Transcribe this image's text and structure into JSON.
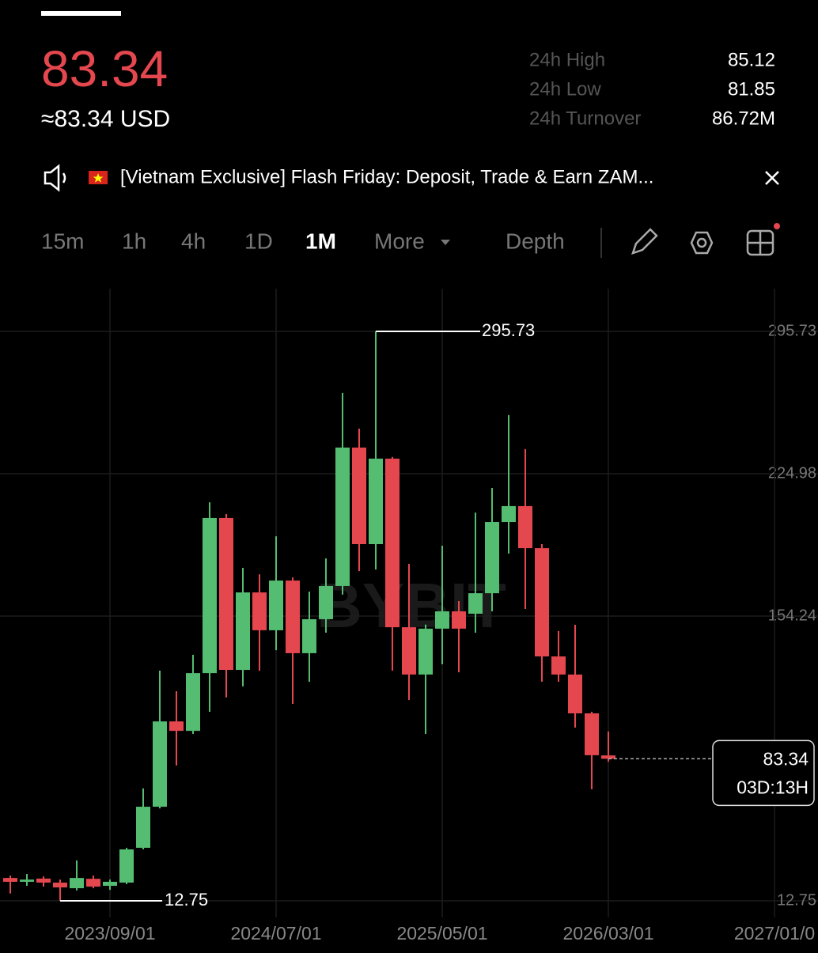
{
  "header": {
    "price": "83.34",
    "usd_price": "≈83.34 USD",
    "stats": [
      {
        "label": "24h High",
        "value": "85.12"
      },
      {
        "label": "24h Low",
        "value": "81.85"
      },
      {
        "label": "24h Turnover",
        "value": "86.72M"
      }
    ]
  },
  "banner": {
    "text": "[Vietnam Exclusive] Flash Friday: Deposit, Trade & Earn ZAM..."
  },
  "tabs": [
    "15m",
    "1h",
    "4h",
    "1D",
    "1M",
    "More",
    "Depth"
  ],
  "chart_data": {
    "type": "candlestick",
    "watermark": "BYBIT",
    "categories": [
      null,
      null,
      null,
      null,
      null,
      null,
      "2023/09/01",
      null,
      null,
      null,
      null,
      null,
      null,
      null,
      null,
      null,
      "2024/07/01",
      null,
      null,
      null,
      null,
      null,
      null,
      null,
      null,
      null,
      "2025/05/01",
      null,
      null,
      null,
      null,
      null,
      null,
      null,
      null,
      null,
      "2026/03/01",
      null,
      null,
      null,
      null,
      null,
      null,
      null,
      null,
      null,
      "2027/01/0"
    ],
    "open": [
      24.1,
      22.2,
      23.8,
      21.8,
      19.0,
      23.7,
      20.2,
      21.8,
      39.1,
      59.5,
      101.9,
      97.2,
      125.9,
      203.0,
      127.5,
      166.0,
      147.2,
      171.9,
      135.8,
      152.7,
      169.2,
      238.0,
      190.0,
      232.5,
      148.7,
      125.2,
      148.0,
      156.6,
      155.4,
      165.6,
      201.0,
      208.9,
      188.0,
      134.2,
      125.2,
      105.9,
      85.0,
      null,
      null,
      null,
      null,
      null,
      null,
      null,
      null,
      null,
      null
    ],
    "high": [
      25.3,
      26.1,
      24.9,
      23.3,
      32.8,
      25.3,
      23.3,
      39.1,
      68.6,
      127.1,
      116.9,
      135.0,
      210.8,
      205.0,
      178.2,
      175.0,
      193.9,
      173.5,
      166.4,
      182.9,
      265.1,
      247.4,
      295.73,
      233.3,
      180.2,
      150.0,
      189.2,
      161.7,
      205.7,
      217.9,
      254.1,
      237.2,
      190.0,
      146.8,
      149.9,
      106.7,
      96.9,
      null,
      null,
      null,
      null,
      null,
      null,
      null,
      null,
      null,
      null
    ],
    "low": [
      16.4,
      20.2,
      19.8,
      12.75,
      17.9,
      19.0,
      18.2,
      21.0,
      38.3,
      58.7,
      80.0,
      95.7,
      106.7,
      113.8,
      119.3,
      127.1,
      137.3,
      110.6,
      121.6,
      146.0,
      164.9,
      176.6,
      177.4,
      127.1,
      112.6,
      95.7,
      130.3,
      126.3,
      146.0,
      156.6,
      185.3,
      157.8,
      121.6,
      121.6,
      98.8,
      68.2,
      81.85,
      null,
      null,
      null,
      null,
      null,
      null,
      null,
      null,
      null,
      null
    ],
    "close": [
      22.2,
      23.3,
      21.8,
      19.4,
      24.1,
      19.8,
      22.2,
      38.3,
      59.5,
      101.9,
      97.2,
      125.9,
      203.0,
      127.5,
      166.0,
      147.2,
      171.9,
      135.8,
      152.7,
      169.2,
      238.0,
      190.0,
      232.5,
      148.7,
      125.2,
      148.0,
      156.6,
      148.0,
      165.6,
      201.0,
      208.9,
      188.0,
      134.2,
      125.2,
      105.9,
      85.1,
      83.34,
      null,
      null,
      null,
      null,
      null,
      null,
      null,
      null,
      null,
      null
    ],
    "up_color": "#55bd72",
    "down_color": "#e5474f",
    "ylim": [
      4.5,
      316.95
    ],
    "yticks": [
      295.73,
      224.98,
      154.24,
      12.75
    ],
    "high_marker": 295.73,
    "low_marker": 12.75,
    "last_price": 83.34,
    "countdown": "03D:13H",
    "grid": true
  }
}
